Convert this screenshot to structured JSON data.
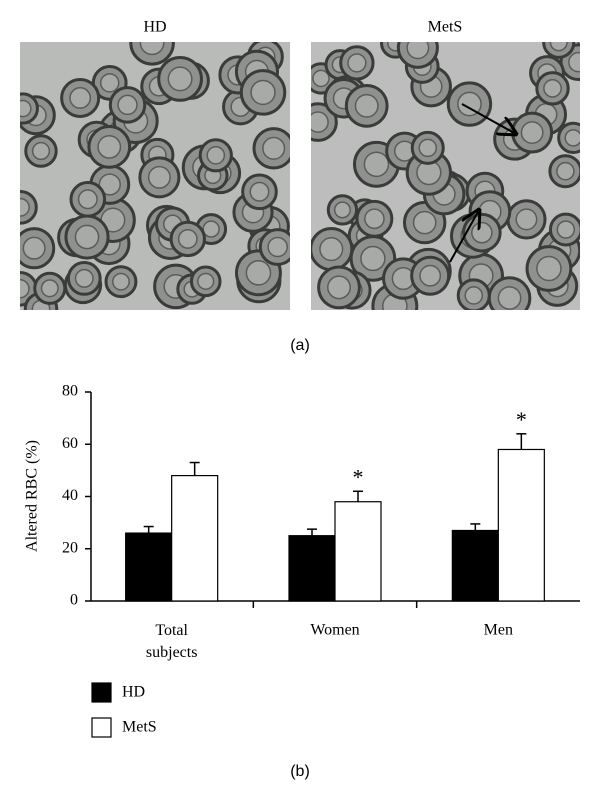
{
  "figure": {
    "image_labels": [
      "HD",
      "MetS"
    ],
    "panel_labels": [
      "(a)",
      "(b)"
    ]
  },
  "chart_data": {
    "type": "bar",
    "ylabel": "Altered RBC (%)",
    "categories": [
      "Total subjects",
      "Women",
      "Men"
    ],
    "series": [
      {
        "name": "HD",
        "color": "#000000",
        "values": [
          26,
          25,
          27
        ],
        "errors": [
          2.5,
          2.5,
          2.5
        ]
      },
      {
        "name": "MetS",
        "color": "#ffffff",
        "values": [
          48,
          38,
          58
        ],
        "errors": [
          5,
          4,
          6
        ],
        "markers": [
          null,
          "*",
          "*"
        ]
      }
    ],
    "ylim": [
      0,
      80
    ],
    "yticks": [
      0,
      20,
      40,
      60,
      80
    ],
    "grid": false
  }
}
